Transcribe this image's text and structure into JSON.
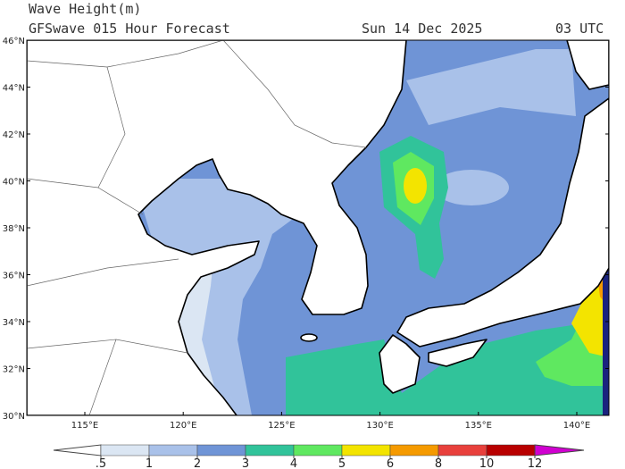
{
  "header": {
    "title": "Wave Height(m)",
    "subtitle": "GFSwave 015 Hour Forecast",
    "date": "Sun 14 Dec 2025",
    "time": "03 UTC"
  },
  "map": {
    "lat_labels": [
      "30°N",
      "32°N",
      "34°N",
      "36°N",
      "38°N",
      "40°N",
      "42°N",
      "44°N",
      "46°N"
    ],
    "lon_labels": [
      "115°E",
      "120°E",
      "125°E",
      "130°E",
      "135°E",
      "140°E"
    ]
  },
  "colorbar": {
    "levels": [
      {
        "value": 0.5,
        "label": ".5"
      },
      1,
      2,
      3,
      4,
      5,
      6,
      8,
      10,
      12
    ],
    "colors": [
      "#ffffff",
      "#dbe6f3",
      "#a9c1e9",
      "#6f94d6",
      "#31c39a",
      "#5fe860",
      "#f3e400",
      "#f59a00",
      "#e8403c",
      "#b80000",
      "#d000d0"
    ]
  }
}
